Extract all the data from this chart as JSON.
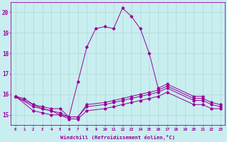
{
  "xlabel": "Windchill (Refroidissement éolien,°C)",
  "background_color": "#c8eef0",
  "grid_color": "#b0d8d8",
  "line_color": "#990099",
  "x_ticks": [
    0,
    1,
    2,
    3,
    4,
    5,
    6,
    7,
    8,
    9,
    10,
    11,
    12,
    13,
    14,
    15,
    16,
    17,
    18,
    19,
    20,
    21,
    22,
    23
  ],
  "ylim": [
    14.5,
    20.5
  ],
  "yticks": [
    15,
    16,
    17,
    18,
    19,
    20
  ],
  "series_x": [
    [
      0,
      1,
      2,
      3,
      4,
      5,
      6,
      7,
      8,
      9,
      10,
      11,
      12,
      13,
      14,
      15,
      16,
      17,
      20,
      21
    ],
    [
      0,
      2,
      3,
      4,
      5,
      6,
      7,
      8,
      10,
      11,
      12,
      13,
      14,
      15,
      16,
      17,
      20,
      21,
      22,
      23
    ],
    [
      0,
      2,
      3,
      4,
      5,
      6,
      7,
      8,
      10,
      11,
      12,
      13,
      14,
      15,
      16,
      17,
      20,
      21,
      22,
      23
    ],
    [
      0,
      2,
      3,
      4,
      5,
      6,
      7,
      8,
      10,
      11,
      12,
      13,
      14,
      15,
      16,
      17,
      20,
      21,
      22,
      23
    ]
  ],
  "series_y": [
    [
      15.9,
      15.8,
      15.5,
      15.3,
      15.2,
      15.0,
      14.9,
      16.6,
      18.3,
      19.2,
      19.3,
      19.2,
      20.2,
      19.8,
      19.2,
      18.0,
      16.3,
      16.5,
      15.9,
      15.9
    ],
    [
      15.9,
      15.5,
      15.4,
      15.3,
      15.3,
      14.9,
      14.9,
      15.5,
      15.6,
      15.7,
      15.8,
      15.9,
      16.0,
      16.1,
      16.2,
      16.4,
      15.8,
      15.8,
      15.6,
      15.5
    ],
    [
      15.9,
      15.4,
      15.3,
      15.2,
      15.1,
      14.9,
      14.9,
      15.4,
      15.5,
      15.6,
      15.7,
      15.8,
      15.9,
      16.0,
      16.1,
      16.3,
      15.7,
      15.7,
      15.5,
      15.4
    ],
    [
      15.9,
      15.2,
      15.1,
      15.0,
      15.0,
      14.8,
      14.8,
      15.2,
      15.3,
      15.4,
      15.5,
      15.6,
      15.7,
      15.8,
      15.9,
      16.1,
      15.5,
      15.5,
      15.3,
      15.3
    ]
  ]
}
